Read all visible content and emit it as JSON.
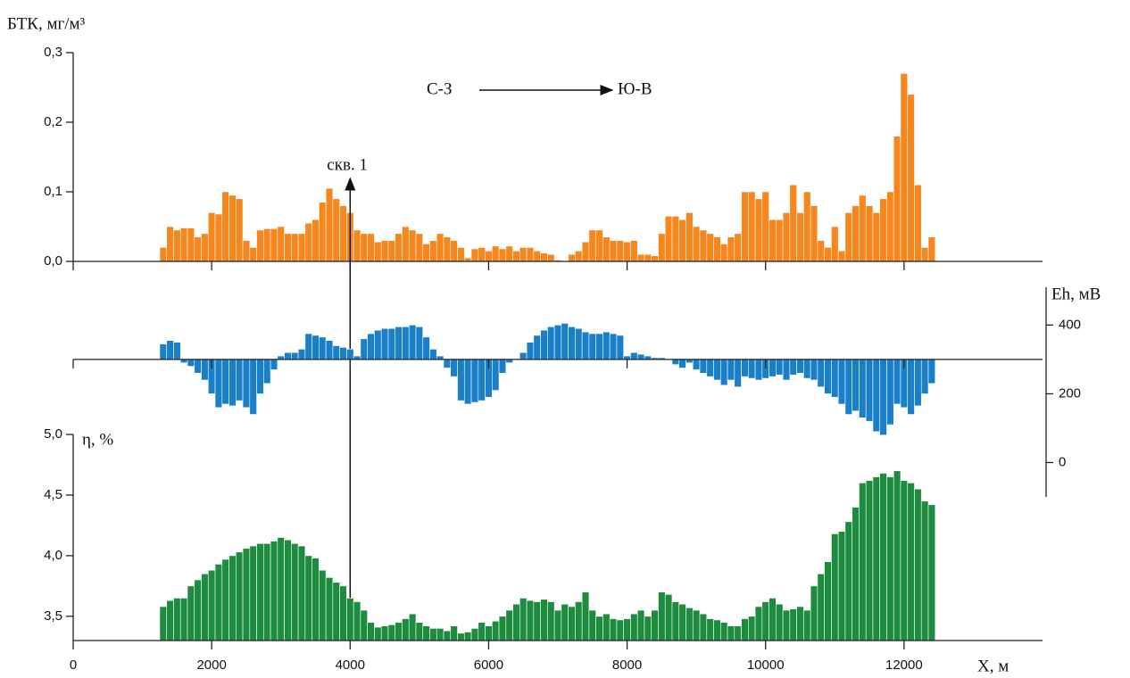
{
  "chart_data": [
    {
      "type": "bar",
      "y_title": "БТК, мг/м³",
      "direction_from": "С-З",
      "direction_to": "Ю-В",
      "well_label": "скв. 1",
      "well_x": 4000,
      "color": "#f7861c",
      "x": [
        1300,
        1400,
        1500,
        1600,
        1700,
        1800,
        1900,
        2000,
        2100,
        2200,
        2300,
        2400,
        2500,
        2600,
        2700,
        2800,
        2900,
        3000,
        3100,
        3200,
        3300,
        3400,
        3500,
        3600,
        3700,
        3800,
        3900,
        4000,
        4100,
        4200,
        4300,
        4400,
        4500,
        4600,
        4700,
        4800,
        4900,
        5000,
        5100,
        5200,
        5300,
        5400,
        5500,
        5600,
        5700,
        5800,
        5900,
        6000,
        6100,
        6200,
        6300,
        6400,
        6500,
        6600,
        6700,
        6800,
        6900,
        7000,
        7100,
        7200,
        7300,
        7400,
        7500,
        7600,
        7700,
        7800,
        7900,
        8000,
        8100,
        8200,
        8300,
        8400,
        8500,
        8600,
        8700,
        8800,
        8900,
        9000,
        9100,
        9200,
        9300,
        9400,
        9500,
        9600,
        9700,
        9800,
        9900,
        10000,
        10100,
        10200,
        10300,
        10400,
        10500,
        10600,
        10700,
        10800,
        10900,
        11000,
        11100,
        11200,
        11300,
        11400,
        11500,
        11600,
        11700,
        11800,
        11900,
        12000,
        12100,
        12200,
        12300,
        12400
      ],
      "values": [
        0.02,
        0.05,
        0.045,
        0.048,
        0.048,
        0.035,
        0.04,
        0.07,
        0.068,
        0.1,
        0.095,
        0.09,
        0.03,
        0.02,
        0.045,
        0.047,
        0.047,
        0.05,
        0.04,
        0.04,
        0.04,
        0.055,
        0.06,
        0.085,
        0.105,
        0.09,
        0.08,
        0.07,
        0.045,
        0.04,
        0.04,
        0.028,
        0.03,
        0.03,
        0.04,
        0.05,
        0.045,
        0.04,
        0.025,
        0.03,
        0.04,
        0.035,
        0.03,
        0.02,
        0.005,
        0.018,
        0.02,
        0.015,
        0.022,
        0.018,
        0.022,
        0.015,
        0.02,
        0.02,
        0.015,
        0.012,
        0.01,
        0.002,
        0,
        0.01,
        0.015,
        0.028,
        0.045,
        0.045,
        0.035,
        0.03,
        0.03,
        0.028,
        0.03,
        0.01,
        0.01,
        0.008,
        0.04,
        0.065,
        0.065,
        0.06,
        0.07,
        0.05,
        0.045,
        0.04,
        0.035,
        0.025,
        0.035,
        0.04,
        0.1,
        0.1,
        0.09,
        0.1,
        0.06,
        0.06,
        0.07,
        0.11,
        0.07,
        0.1,
        0.08,
        0.03,
        0.02,
        0.05,
        0.015,
        0.07,
        0.08,
        0.095,
        0.08,
        0.07,
        0.09,
        0.1,
        0.18,
        0.27,
        0.24,
        0.11,
        0.02,
        0.035
      ],
      "xlim": [
        0,
        14000
      ],
      "xticks": [
        0,
        2000,
        4000,
        6000,
        8000,
        10000,
        12000
      ],
      "ylim": [
        0,
        0.3
      ],
      "yticks": [
        {
          "value": 0,
          "label": "0,0"
        },
        {
          "value": 0.1,
          "label": "0,1"
        },
        {
          "value": 0.2,
          "label": "0,2"
        },
        {
          "value": 0.3,
          "label": "0,3"
        }
      ]
    },
    {
      "type": "bar",
      "y_title": "Eh, мВ",
      "color": "#1a7fc9",
      "baseline": 300,
      "y_axis_side": "right",
      "x": [
        1300,
        1400,
        1500,
        1600,
        1700,
        1800,
        1900,
        2000,
        2100,
        2200,
        2300,
        2400,
        2500,
        2600,
        2700,
        2800,
        2900,
        3000,
        3100,
        3200,
        3300,
        3400,
        3500,
        3600,
        3700,
        3800,
        3900,
        4000,
        4100,
        4200,
        4300,
        4400,
        4500,
        4600,
        4700,
        4800,
        4900,
        5000,
        5100,
        5200,
        5300,
        5400,
        5500,
        5600,
        5700,
        5800,
        5900,
        6000,
        6100,
        6200,
        6300,
        6400,
        6500,
        6600,
        6700,
        6800,
        6900,
        7000,
        7100,
        7200,
        7300,
        7400,
        7500,
        7600,
        7700,
        7800,
        7900,
        8000,
        8100,
        8200,
        8300,
        8400,
        8500,
        8600,
        8700,
        8800,
        8900,
        9000,
        9100,
        9200,
        9300,
        9400,
        9500,
        9600,
        9700,
        9800,
        9900,
        10000,
        10100,
        10200,
        10300,
        10400,
        10500,
        10600,
        10700,
        10800,
        10900,
        11000,
        11100,
        11200,
        11300,
        11400,
        11500,
        11600,
        11700,
        11800,
        11900,
        12000,
        12100,
        12200,
        12300,
        12400
      ],
      "values": [
        345,
        355,
        350,
        290,
        280,
        260,
        240,
        200,
        160,
        170,
        165,
        180,
        160,
        140,
        200,
        230,
        270,
        310,
        320,
        320,
        330,
        375,
        370,
        365,
        355,
        340,
        335,
        330,
        310,
        360,
        375,
        385,
        390,
        390,
        395,
        395,
        400,
        395,
        365,
        330,
        310,
        275,
        250,
        180,
        170,
        175,
        180,
        190,
        210,
        260,
        290,
        300,
        320,
        350,
        370,
        385,
        395,
        400,
        405,
        395,
        390,
        380,
        375,
        375,
        380,
        375,
        370,
        310,
        320,
        315,
        310,
        305,
        305,
        300,
        285,
        275,
        290,
        270,
        260,
        250,
        240,
        225,
        240,
        220,
        250,
        245,
        240,
        245,
        250,
        255,
        240,
        255,
        260,
        245,
        240,
        220,
        200,
        190,
        170,
        140,
        150,
        130,
        120,
        90,
        80,
        110,
        170,
        160,
        140,
        165,
        200,
        230
      ],
      "xlim": [
        0,
        14000
      ],
      "xticks": [
        0,
        2000,
        4000,
        6000,
        8000,
        10000,
        12000
      ],
      "ylim": [
        -100,
        510
      ],
      "yticks": [
        0,
        200,
        400
      ]
    },
    {
      "type": "bar",
      "y_title": "η, %",
      "x_title": "X, м",
      "color": "#1e8c3e",
      "x": [
        1300,
        1400,
        1500,
        1600,
        1700,
        1800,
        1900,
        2000,
        2100,
        2200,
        2300,
        2400,
        2500,
        2600,
        2700,
        2800,
        2900,
        3000,
        3100,
        3200,
        3300,
        3400,
        3500,
        3600,
        3700,
        3800,
        3900,
        4000,
        4100,
        4200,
        4300,
        4400,
        4500,
        4600,
        4700,
        4800,
        4900,
        5000,
        5100,
        5200,
        5300,
        5400,
        5500,
        5600,
        5700,
        5800,
        5900,
        6000,
        6100,
        6200,
        6300,
        6400,
        6500,
        6600,
        6700,
        6800,
        6900,
        7000,
        7100,
        7200,
        7300,
        7400,
        7500,
        7600,
        7700,
        7800,
        7900,
        8000,
        8100,
        8200,
        8300,
        8400,
        8500,
        8600,
        8700,
        8800,
        8900,
        9000,
        9100,
        9200,
        9300,
        9400,
        9500,
        9600,
        9700,
        9800,
        9900,
        10000,
        10100,
        10200,
        10300,
        10400,
        10500,
        10600,
        10700,
        10800,
        10900,
        11000,
        11100,
        11200,
        11300,
        11400,
        11500,
        11600,
        11700,
        11800,
        11900,
        12000,
        12100,
        12200,
        12300,
        12400
      ],
      "values": [
        3.58,
        3.63,
        3.65,
        3.65,
        3.75,
        3.8,
        3.85,
        3.88,
        3.93,
        3.97,
        4.0,
        4.03,
        4.06,
        4.08,
        4.1,
        4.1,
        4.12,
        4.15,
        4.13,
        4.1,
        4.08,
        4.0,
        3.98,
        3.88,
        3.82,
        3.78,
        3.75,
        3.65,
        3.62,
        3.55,
        3.45,
        3.41,
        3.42,
        3.43,
        3.45,
        3.48,
        3.52,
        3.45,
        3.42,
        3.4,
        3.4,
        3.38,
        3.42,
        3.36,
        3.37,
        3.4,
        3.45,
        3.42,
        3.46,
        3.5,
        3.55,
        3.6,
        3.65,
        3.63,
        3.62,
        3.64,
        3.62,
        3.55,
        3.6,
        3.58,
        3.62,
        3.7,
        3.55,
        3.5,
        3.52,
        3.48,
        3.47,
        3.48,
        3.52,
        3.55,
        3.5,
        3.55,
        3.7,
        3.68,
        3.62,
        3.6,
        3.57,
        3.55,
        3.52,
        3.48,
        3.47,
        3.45,
        3.42,
        3.42,
        3.48,
        3.5,
        3.58,
        3.62,
        3.65,
        3.6,
        3.55,
        3.56,
        3.58,
        3.55,
        3.75,
        3.85,
        3.95,
        4.18,
        4.2,
        4.28,
        4.4,
        4.6,
        4.62,
        4.65,
        4.68,
        4.65,
        4.7,
        4.62,
        4.6,
        4.55,
        4.45,
        4.42
      ],
      "xlim": [
        0,
        14000
      ],
      "xticks": [
        0,
        2000,
        4000,
        6000,
        8000,
        10000,
        12000
      ],
      "ylim": [
        3.3,
        5.0
      ],
      "yticks": [
        {
          "value": 3.5,
          "label": "3,5"
        },
        {
          "value": 4.0,
          "label": "4,0"
        },
        {
          "value": 4.5,
          "label": "4,5"
        },
        {
          "value": 5.0,
          "label": "5,0"
        }
      ]
    }
  ]
}
